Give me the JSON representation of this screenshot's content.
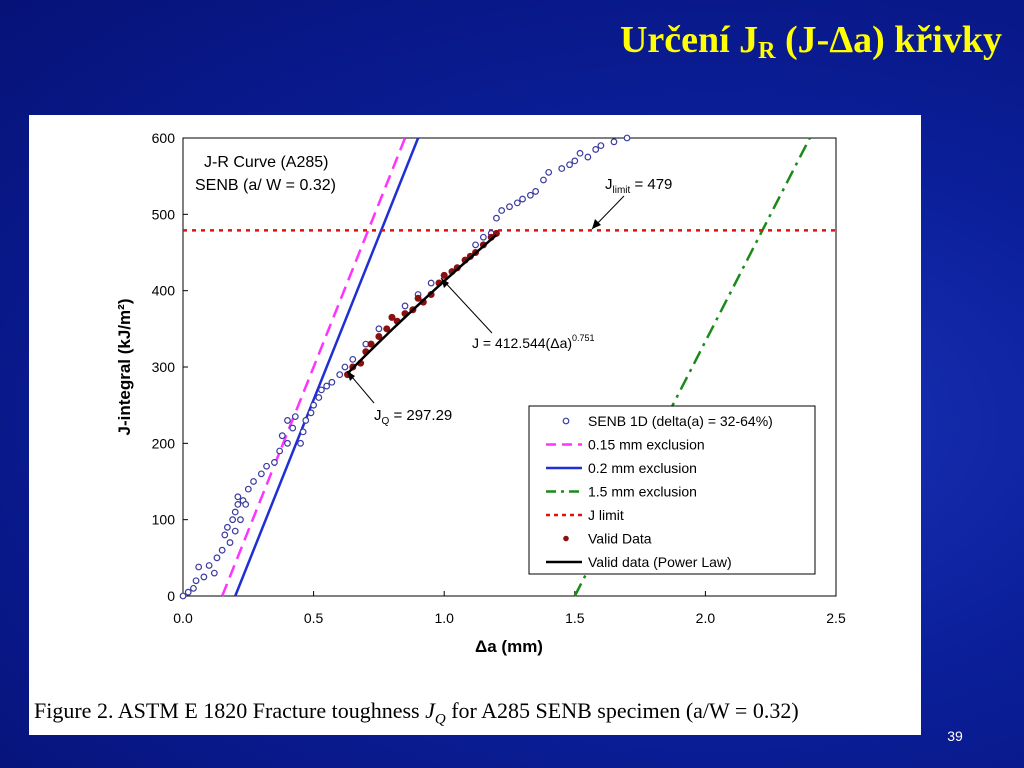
{
  "slide": {
    "title_main": "Určení J",
    "title_sub": "R",
    "title_rest": " (J-Δa) křivky",
    "caption_prefix": "Figure 2. ASTM E 1820 Fracture toughness ",
    "caption_j": "J",
    "caption_q": "Q",
    "caption_suffix": " for A285 SENB specimen (a/W = 0.32)",
    "page_number": "39",
    "background_color": "#0b1f9a",
    "title_color": "#ffff00"
  },
  "chart_data": {
    "type": "scatter",
    "title": "J-R Curve (A285)",
    "subtitle": "SENB (a/ W = 0.32)",
    "xlabel": "Δa (mm)",
    "ylabel": "J-integral (kJ/m²)",
    "xlim": [
      0,
      2.5
    ],
    "ylim": [
      0,
      600
    ],
    "xticks": [
      "0.0",
      "0.5",
      "1.0",
      "1.5",
      "2.0",
      "2.5"
    ],
    "yticks": [
      "0",
      "100",
      "200",
      "300",
      "400",
      "500",
      "600"
    ],
    "grid": false,
    "legend_position": "bottom-right",
    "legend": [
      {
        "label": "SENB 1D (delta(a) = 32-64%)",
        "style": "open-circle",
        "color": "#3a3aa0"
      },
      {
        "label": "0.15 mm exclusion",
        "style": "dash",
        "color": "#ff33ff"
      },
      {
        "label": "0.2 mm exclusion",
        "style": "solid",
        "color": "#1f2fd6"
      },
      {
        "label": "1.5 mm exclusion",
        "style": "dash-dot",
        "color": "#1a8a1a"
      },
      {
        "label": "J limit",
        "style": "dot",
        "color": "#e01010"
      },
      {
        "label": "Valid Data",
        "style": "filled-circle",
        "color": "#8b1010"
      },
      {
        "label": "Valid data (Power Law)",
        "style": "solid-thick",
        "color": "#000000"
      }
    ],
    "annotations": {
      "jlimit_prefix": "J",
      "jlimit_sub": "limit",
      "jlimit_value": " = 479",
      "power_law": "J = 412.544(Δa)",
      "power_law_exp": "0.751",
      "jq_prefix": "J",
      "jq_sub": "Q",
      "jq_value": " = 297.29"
    },
    "j_limit": 479,
    "exclusion_lines": [
      {
        "name": "0.15 mm exclusion",
        "x0": 0.15,
        "slope": 857
      },
      {
        "name": "0.2 mm exclusion",
        "x0": 0.2,
        "slope": 857
      },
      {
        "name": "1.5 mm exclusion",
        "x0": 1.5,
        "slope": 667
      }
    ],
    "power_law": {
      "coefficient": 412.544,
      "exponent": 0.751,
      "x_range": [
        0.63,
        1.2
      ]
    },
    "series": [
      {
        "name": "SENB 1D (delta(a) = 32-64%)",
        "x": [
          0.0,
          0.02,
          0.04,
          0.05,
          0.06,
          0.08,
          0.1,
          0.12,
          0.13,
          0.15,
          0.16,
          0.17,
          0.18,
          0.19,
          0.2,
          0.2,
          0.21,
          0.22,
          0.21,
          0.23,
          0.24,
          0.25,
          0.27,
          0.3,
          0.32,
          0.35,
          0.37,
          0.38,
          0.4,
          0.4,
          0.42,
          0.43,
          0.45,
          0.46,
          0.47,
          0.49,
          0.5,
          0.52,
          0.53,
          0.55,
          0.57,
          0.6,
          0.62,
          0.65,
          0.7,
          0.75,
          0.8,
          0.85,
          0.9,
          0.95,
          1.0,
          1.05,
          1.1,
          1.12,
          1.15,
          1.18,
          1.2,
          1.22,
          1.25,
          1.28,
          1.3,
          1.33,
          1.35,
          1.38,
          1.4,
          1.45,
          1.48,
          1.5,
          1.52,
          1.55,
          1.58,
          1.6,
          1.65,
          1.7
        ],
        "y": [
          0,
          5,
          10,
          20,
          38,
          25,
          40,
          30,
          50,
          60,
          80,
          90,
          70,
          100,
          110,
          85,
          120,
          100,
          130,
          125,
          120,
          140,
          150,
          160,
          170,
          175,
          190,
          210,
          200,
          230,
          220,
          235,
          200,
          215,
          230,
          240,
          250,
          260,
          270,
          275,
          280,
          290,
          300,
          310,
          330,
          350,
          365,
          380,
          395,
          410,
          420,
          430,
          445,
          460,
          470,
          475,
          495,
          505,
          510,
          515,
          520,
          525,
          530,
          545,
          555,
          560,
          565,
          570,
          580,
          575,
          585,
          590,
          595,
          600
        ]
      },
      {
        "name": "Valid Data",
        "x": [
          0.63,
          0.65,
          0.68,
          0.7,
          0.72,
          0.75,
          0.78,
          0.8,
          0.82,
          0.85,
          0.88,
          0.9,
          0.92,
          0.95,
          0.98,
          1.0,
          1.03,
          1.05,
          1.08,
          1.1,
          1.12,
          1.15,
          1.18,
          1.2
        ],
        "y": [
          290,
          300,
          305,
          320,
          330,
          340,
          350,
          365,
          360,
          370,
          375,
          390,
          385,
          395,
          410,
          420,
          425,
          430,
          440,
          445,
          450,
          460,
          470,
          475
        ]
      }
    ]
  }
}
